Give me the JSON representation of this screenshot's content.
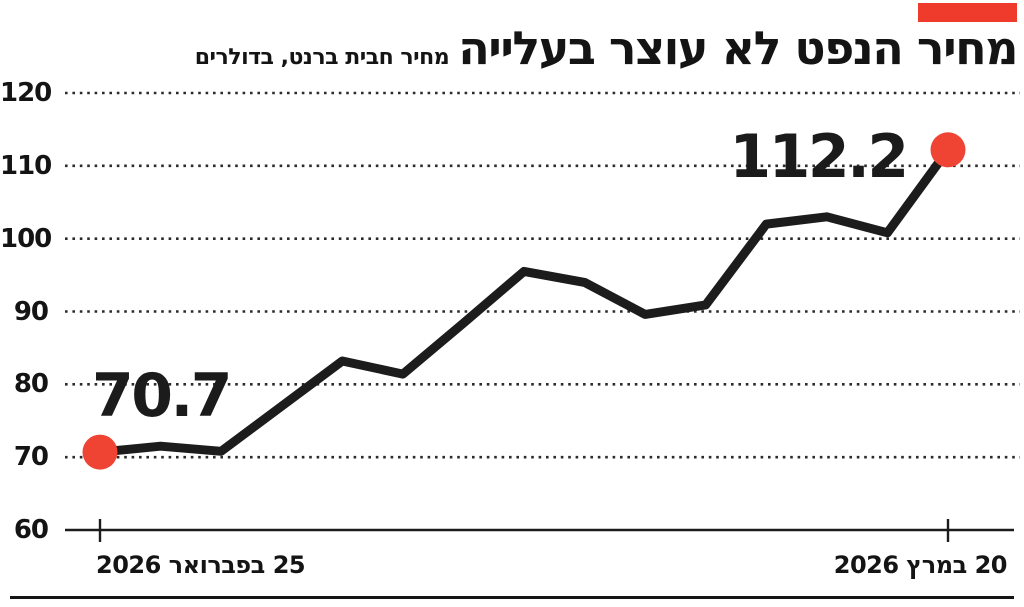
{
  "header": {
    "title": "מחיר הנפט לא עוצר בעלייה",
    "subtitle": "מחיר חבית ברנט, בדולרים",
    "brand_bar_color": "#ee3b2c"
  },
  "chart_data": {
    "type": "line",
    "title": "מחיר הנפט לא עוצר בעלייה",
    "subtitle": "מחיר חבית ברנט, בדולרים",
    "ylim": [
      60,
      120
    ],
    "yticks": [
      120,
      110,
      100,
      90,
      80,
      70,
      60
    ],
    "x_start_label": "25 בפברואר 2026",
    "x_end_label": "20 במרץ 2026",
    "series": [
      {
        "name": "Brent barrel price (USD)",
        "values": [
          70.7,
          71.5,
          70.8,
          77.0,
          83.2,
          81.4,
          88.4,
          95.5,
          94.0,
          89.6,
          90.9,
          102.0,
          103.0,
          100.8,
          112.2
        ]
      }
    ],
    "point_labels": {
      "first": "70.7",
      "last": "112.2"
    },
    "line_color": "#1c1c1c",
    "marker_color": "#ef4434",
    "grid": "horizontal dotted",
    "legend": "none"
  }
}
